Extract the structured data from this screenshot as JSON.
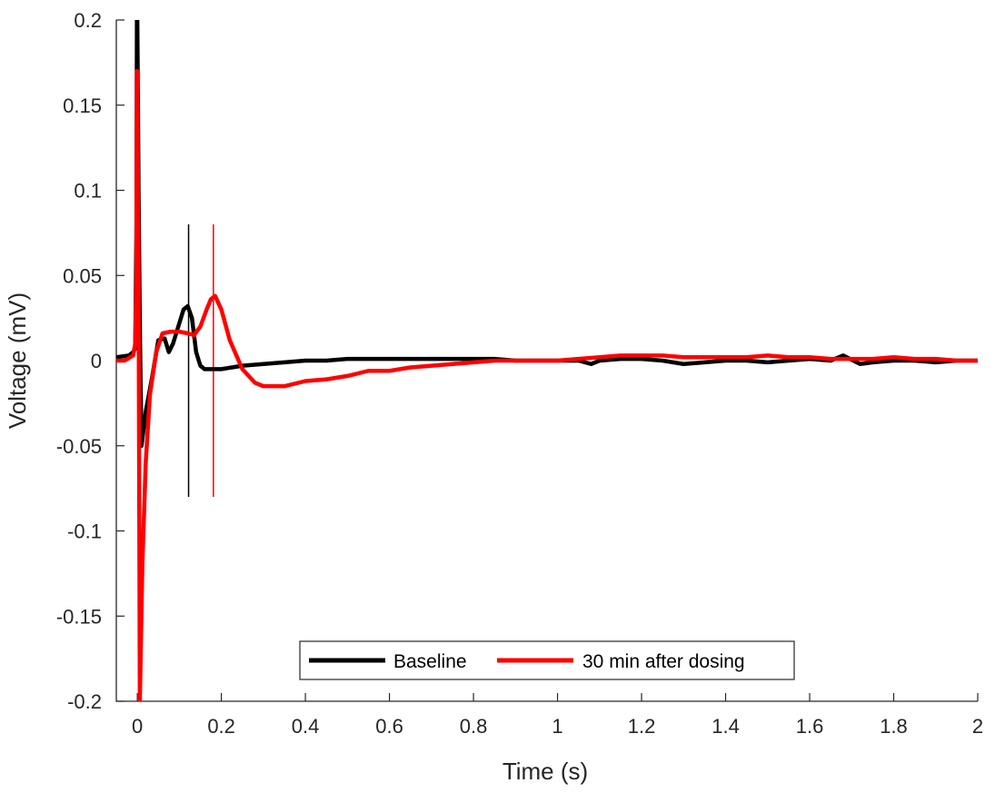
{
  "chart_data": {
    "type": "line",
    "title": "",
    "xlabel": "Time (s)",
    "ylabel": "Voltage (mV)",
    "xlim": [
      -0.05,
      2
    ],
    "ylim": [
      -0.2,
      0.2
    ],
    "xticks": [
      0,
      0.2,
      0.4,
      0.6,
      0.8,
      1,
      1.2,
      1.4,
      1.6,
      1.8,
      2
    ],
    "xtick_labels": [
      "0",
      "0.2",
      "0.4",
      "0.6",
      "0.8",
      "1",
      "1.2",
      "1.4",
      "1.6",
      "1.8",
      "2"
    ],
    "yticks": [
      -0.2,
      -0.15,
      -0.1,
      -0.05,
      0,
      0.05,
      0.1,
      0.15,
      0.2
    ],
    "ytick_labels": [
      "-0.2",
      "-0.15",
      "-0.1",
      "-0.05",
      "0",
      "0.05",
      "0.1",
      "0.15",
      "0.2"
    ],
    "grid": false,
    "legend_position": "bottom-center",
    "series": [
      {
        "name": "Baseline",
        "color": "#000000",
        "x": [
          -0.05,
          -0.02,
          -0.01,
          -0.005,
          -0.002,
          -0.001,
          0,
          0.003,
          0.006,
          0.01,
          0.02,
          0.035,
          0.05,
          0.065,
          0.075,
          0.085,
          0.1,
          0.11,
          0.12,
          0.13,
          0.14,
          0.15,
          0.16,
          0.175,
          0.2,
          0.25,
          0.3,
          0.35,
          0.4,
          0.45,
          0.5,
          0.55,
          0.6,
          0.65,
          0.7,
          0.75,
          0.8,
          0.85,
          0.9,
          0.95,
          1.0,
          1.05,
          1.08,
          1.1,
          1.15,
          1.2,
          1.25,
          1.3,
          1.35,
          1.4,
          1.45,
          1.5,
          1.55,
          1.6,
          1.65,
          1.68,
          1.72,
          1.75,
          1.8,
          1.85,
          1.9,
          1.95,
          2.0
        ],
        "y": [
          0.002,
          0.003,
          0.005,
          0.007,
          0.08,
          0.2,
          0.2,
          0.1,
          0.02,
          -0.05,
          -0.03,
          -0.01,
          0.012,
          0.013,
          0.005,
          0.01,
          0.022,
          0.03,
          0.032,
          0.025,
          0.005,
          -0.003,
          -0.005,
          -0.005,
          -0.005,
          -0.003,
          -0.002,
          -0.001,
          0.0,
          0.0,
          0.001,
          0.001,
          0.001,
          0.001,
          0.001,
          0.001,
          0.001,
          0.001,
          0.0,
          0.0,
          0.0,
          0.0,
          -0.002,
          0.0,
          0.001,
          0.001,
          0.0,
          -0.002,
          -0.001,
          0.0,
          0.0,
          -0.001,
          0.0,
          0.001,
          0.0,
          0.003,
          -0.002,
          -0.001,
          0.0,
          0.0,
          -0.001,
          0.0,
          0.0
        ]
      },
      {
        "name": "30 min after dosing",
        "color": "#ff0000",
        "x": [
          -0.05,
          -0.03,
          -0.01,
          -0.005,
          -0.002,
          -0.001,
          0,
          0.003,
          0.006,
          0.012,
          0.02,
          0.03,
          0.045,
          0.06,
          0.08,
          0.1,
          0.12,
          0.135,
          0.15,
          0.165,
          0.175,
          0.185,
          0.2,
          0.22,
          0.25,
          0.28,
          0.3,
          0.35,
          0.4,
          0.45,
          0.5,
          0.55,
          0.6,
          0.65,
          0.7,
          0.75,
          0.8,
          0.85,
          0.9,
          0.95,
          1.0,
          1.05,
          1.1,
          1.15,
          1.2,
          1.25,
          1.3,
          1.35,
          1.4,
          1.45,
          1.5,
          1.55,
          1.6,
          1.65,
          1.7,
          1.75,
          1.8,
          1.85,
          1.9,
          1.95,
          2.0
        ],
        "y": [
          0.0,
          0.0,
          0.003,
          0.01,
          0.05,
          0.17,
          0.17,
          0.05,
          -0.2,
          -0.12,
          -0.06,
          -0.02,
          0.005,
          0.016,
          0.017,
          0.017,
          0.016,
          0.015,
          0.02,
          0.03,
          0.036,
          0.038,
          0.03,
          0.012,
          -0.005,
          -0.013,
          -0.015,
          -0.015,
          -0.012,
          -0.011,
          -0.009,
          -0.006,
          -0.006,
          -0.004,
          -0.003,
          -0.002,
          -0.001,
          0.0,
          0.0,
          0.0,
          0.0,
          0.001,
          0.002,
          0.003,
          0.003,
          0.003,
          0.002,
          0.002,
          0.002,
          0.002,
          0.003,
          0.002,
          0.002,
          0.001,
          0.001,
          0.001,
          0.002,
          0.001,
          0.001,
          0.0,
          0.0
        ]
      }
    ],
    "markers": [
      {
        "x": 0.122,
        "y_range": [
          -0.08,
          0.08
        ],
        "color": "#000000"
      },
      {
        "x": 0.181,
        "y_range": [
          -0.08,
          0.08
        ],
        "color": "#ff0000"
      }
    ]
  }
}
